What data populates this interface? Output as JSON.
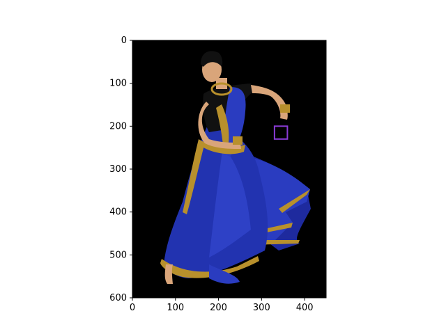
{
  "image": {
    "subject": "dancer-in-blue-skirt-photo",
    "background_color": "#000000",
    "skirt_color": "#2233b0",
    "border_color": "#b8902c",
    "skin_color": "#d9a57a",
    "marker_color": "#8a3bd6"
  },
  "axes": {
    "xlim": [
      0,
      450
    ],
    "ylim": [
      600,
      0
    ],
    "x_ticks": [
      0,
      100,
      200,
      300,
      400
    ],
    "y_ticks": [
      0,
      100,
      200,
      300,
      400,
      500,
      600
    ],
    "x_tick_labels": [
      "0",
      "100",
      "200",
      "300",
      "400"
    ],
    "y_tick_labels": [
      "0",
      "100",
      "200",
      "300",
      "400",
      "500",
      "600"
    ]
  },
  "annotation": {
    "type": "purple-box-marker",
    "x": [
      330,
      360
    ],
    "y": [
      200,
      230
    ]
  }
}
